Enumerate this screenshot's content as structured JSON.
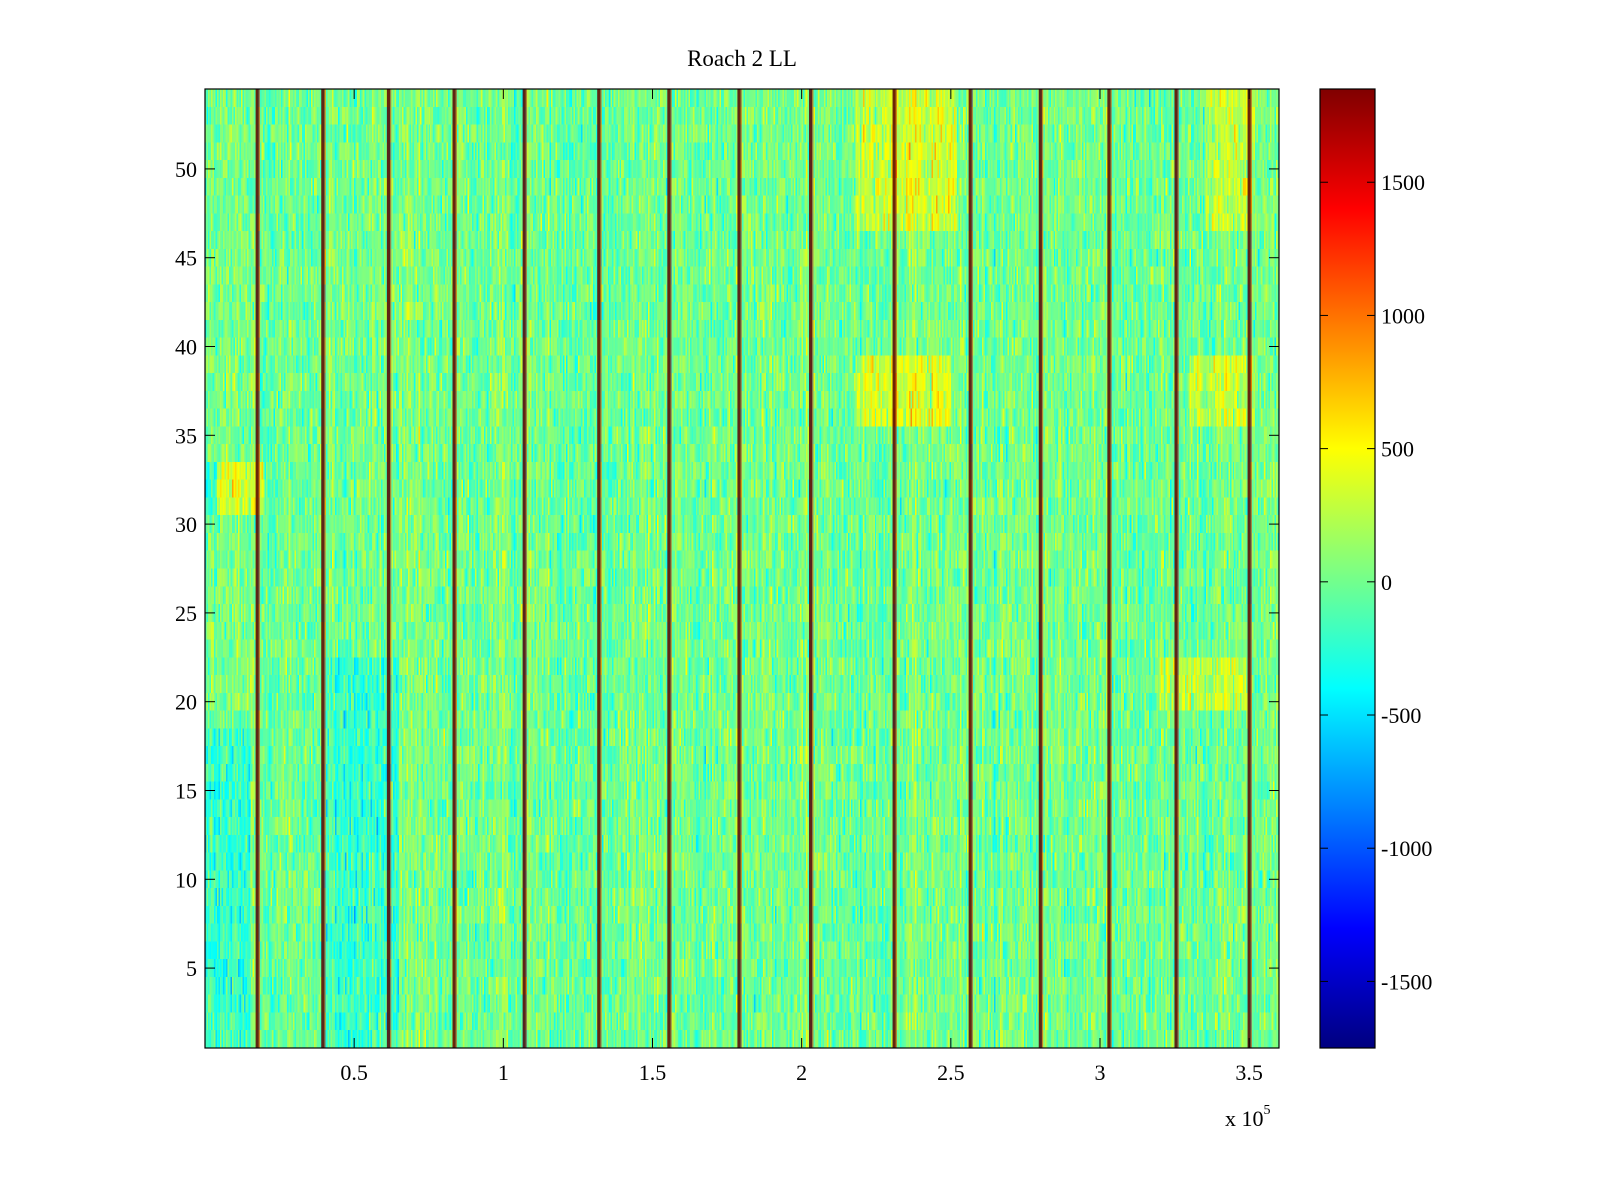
{
  "chart_data": {
    "type": "heatmap",
    "title": "Roach 2 LL",
    "xlabel": "",
    "ylabel": "",
    "x_multiplier_label": "x 10",
    "x_multiplier_exponent": "5",
    "xlim": [
      0,
      360000
    ],
    "ylim": [
      0.5,
      54.5
    ],
    "x_ticks": [
      50000,
      100000,
      150000,
      200000,
      250000,
      300000,
      350000
    ],
    "x_tick_labels": [
      "0.5",
      "1",
      "1.5",
      "2",
      "2.5",
      "3",
      "3.5"
    ],
    "y_ticks": [
      5,
      10,
      15,
      20,
      25,
      30,
      35,
      40,
      45,
      50
    ],
    "y_tick_labels": [
      "5",
      "10",
      "15",
      "20",
      "25",
      "30",
      "35",
      "40",
      "45",
      "50"
    ],
    "rows": 54,
    "colormap": "jet",
    "colorbar": {
      "clim": [
        -1750,
        1850
      ],
      "ticks": [
        -1500,
        -1000,
        -500,
        0,
        500,
        1000,
        1500
      ],
      "tick_labels": [
        "-1500",
        "-1000",
        "-500",
        "0",
        "500",
        "1000",
        "1500"
      ]
    },
    "background_level": 0,
    "dark_stripe_x": [
      17500,
      39500,
      61500,
      83500,
      107000,
      132000,
      155500,
      179000,
      203000,
      231000,
      256500,
      280000,
      303000,
      325500,
      350000
    ],
    "warm_patches": [
      {
        "x": [
          218000,
          252000
        ],
        "y": [
          47,
          54
        ],
        "value": 700
      },
      {
        "x": [
          218000,
          250000
        ],
        "y": [
          36,
          39
        ],
        "value": 800
      },
      {
        "x": [
          335000,
          352000
        ],
        "y": [
          47,
          54
        ],
        "value": 650
      },
      {
        "x": [
          330000,
          352000
        ],
        "y": [
          36,
          39
        ],
        "value": 650
      },
      {
        "x": [
          0,
          20000
        ],
        "y": [
          31,
          33
        ],
        "value": 700
      },
      {
        "x": [
          320000,
          350000
        ],
        "y": [
          20,
          22
        ],
        "value": 650
      }
    ],
    "cool_patches": [
      {
        "x": [
          0,
          4000
        ],
        "y": [
          31,
          33
        ],
        "value": -1200
      },
      {
        "x": [
          0,
          15000
        ],
        "y": [
          1,
          18
        ],
        "value": -500
      },
      {
        "x": [
          40000,
          65000
        ],
        "y": [
          1,
          22
        ],
        "value": -450
      }
    ]
  }
}
